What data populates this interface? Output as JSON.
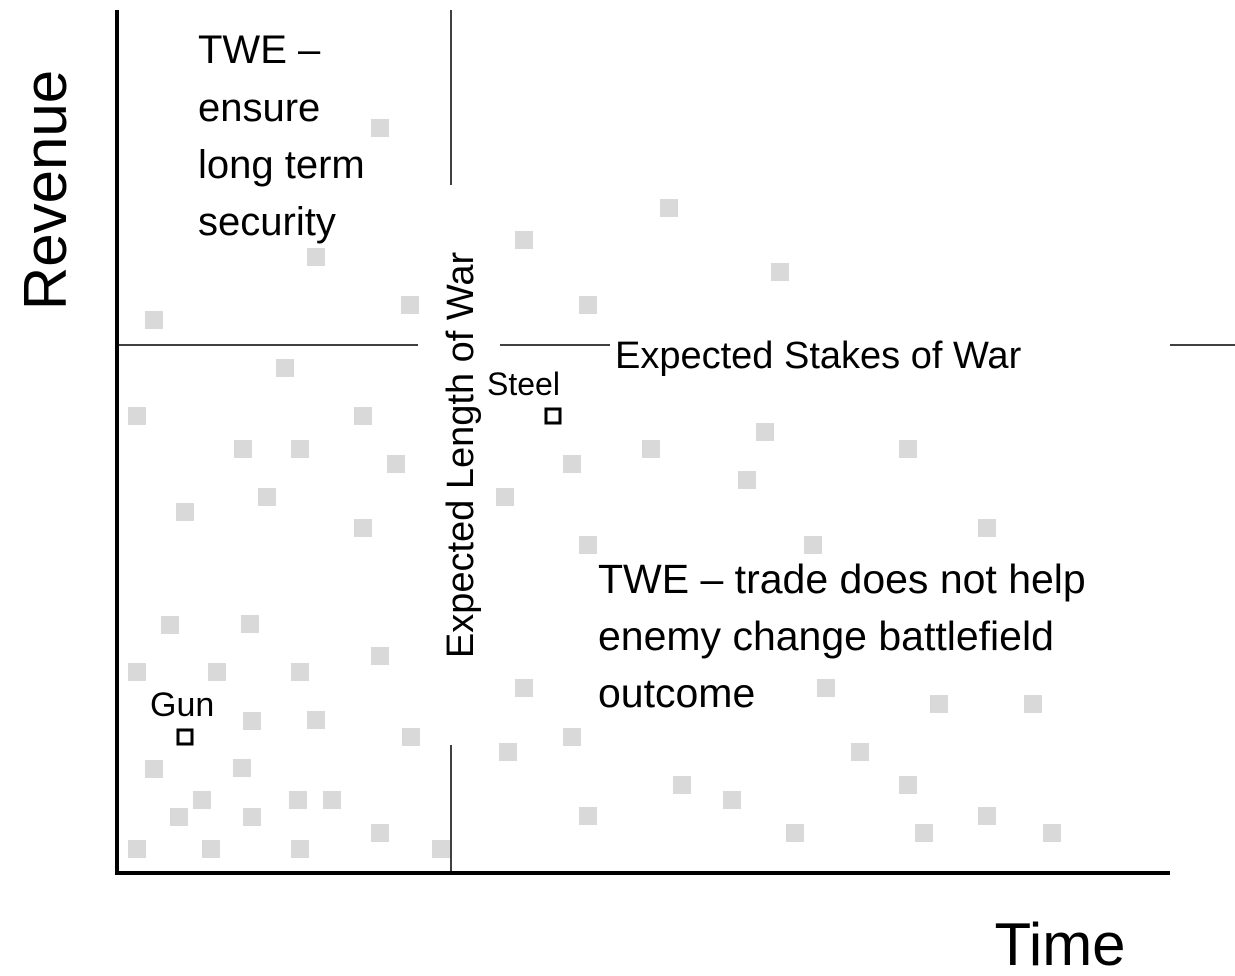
{
  "axis_labels": {
    "y": "Revenue",
    "x": "Time"
  },
  "dividers": {
    "vertical": "Expected Length of War",
    "horizontal": "Expected Stakes of War"
  },
  "points": [
    {
      "label": "Steel"
    },
    {
      "label": "Gun"
    }
  ],
  "quadrants": [
    {
      "lines": [
        "TWE –",
        "ensure",
        "long term",
        "security"
      ]
    },
    {
      "lines": [
        "TWE – trade does not help",
        "enemy change battlefield",
        "outcome"
      ]
    }
  ]
}
